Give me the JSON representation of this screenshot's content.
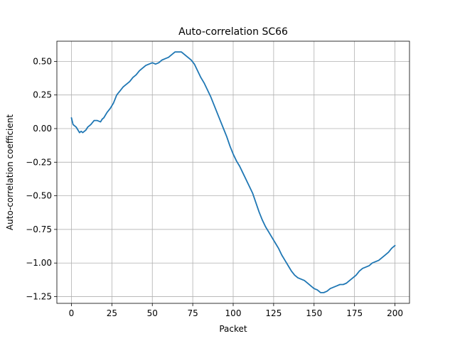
{
  "chart_data": {
    "type": "line",
    "title": "Auto-correlation SC66",
    "xlabel": "Packet",
    "ylabel": "Auto-correlation coefficient",
    "xlim": [
      -9,
      209
    ],
    "ylim": [
      -1.3,
      0.65
    ],
    "xticks": [
      0,
      25,
      50,
      75,
      100,
      125,
      150,
      175,
      200
    ],
    "xtick_labels": [
      "0",
      "25",
      "50",
      "75",
      "100",
      "125",
      "150",
      "175",
      "200"
    ],
    "yticks": [
      0.5,
      0.25,
      0.0,
      -0.25,
      -0.5,
      -0.75,
      -1.0,
      -1.25
    ],
    "ytick_labels": [
      "0.50",
      "0.25",
      "0.00",
      "−0.25",
      "−0.50",
      "−0.75",
      "−1.00",
      "−1.25"
    ],
    "grid": true,
    "series": [
      {
        "color": "#1f77b4",
        "x": [
          0,
          1,
          3,
          5,
          6,
          7,
          8,
          9,
          10,
          12,
          14,
          16,
          18,
          19,
          20,
          22,
          24,
          26,
          28,
          30,
          32,
          34,
          36,
          38,
          40,
          42,
          44,
          46,
          48,
          50,
          52,
          54,
          56,
          58,
          60,
          62,
          64,
          66,
          68,
          70,
          72,
          74,
          76,
          78,
          80,
          82,
          84,
          86,
          88,
          90,
          92,
          94,
          96,
          98,
          100,
          102,
          104,
          106,
          108,
          110,
          112,
          114,
          116,
          118,
          120,
          122,
          124,
          126,
          128,
          130,
          132,
          134,
          136,
          138,
          140,
          142,
          144,
          146,
          148,
          150,
          152,
          154,
          156,
          158,
          160,
          162,
          164,
          166,
          168,
          170,
          172,
          174,
          176,
          178,
          180,
          182,
          184,
          186,
          188,
          190,
          192,
          194,
          196,
          198,
          200
        ],
        "y": [
          0.08,
          0.03,
          0.01,
          -0.03,
          -0.02,
          -0.03,
          -0.02,
          -0.01,
          0.01,
          0.03,
          0.06,
          0.06,
          0.05,
          0.07,
          0.08,
          0.12,
          0.15,
          0.19,
          0.25,
          0.28,
          0.31,
          0.33,
          0.35,
          0.38,
          0.4,
          0.43,
          0.45,
          0.47,
          0.48,
          0.49,
          0.48,
          0.49,
          0.51,
          0.52,
          0.53,
          0.55,
          0.57,
          0.57,
          0.57,
          0.55,
          0.53,
          0.51,
          0.48,
          0.43,
          0.38,
          0.34,
          0.29,
          0.24,
          0.18,
          0.12,
          0.06,
          0.0,
          -0.06,
          -0.13,
          -0.19,
          -0.24,
          -0.28,
          -0.33,
          -0.38,
          -0.43,
          -0.48,
          -0.55,
          -0.62,
          -0.68,
          -0.73,
          -0.77,
          -0.81,
          -0.85,
          -0.89,
          -0.94,
          -0.98,
          -1.02,
          -1.06,
          -1.09,
          -1.11,
          -1.12,
          -1.13,
          -1.15,
          -1.17,
          -1.19,
          -1.2,
          -1.22,
          -1.22,
          -1.21,
          -1.19,
          -1.18,
          -1.17,
          -1.16,
          -1.16,
          -1.15,
          -1.13,
          -1.11,
          -1.09,
          -1.06,
          -1.04,
          -1.03,
          -1.02,
          -1.0,
          -0.99,
          -0.98,
          -0.96,
          -0.94,
          -0.92,
          -0.89,
          -0.87
        ]
      }
    ]
  }
}
